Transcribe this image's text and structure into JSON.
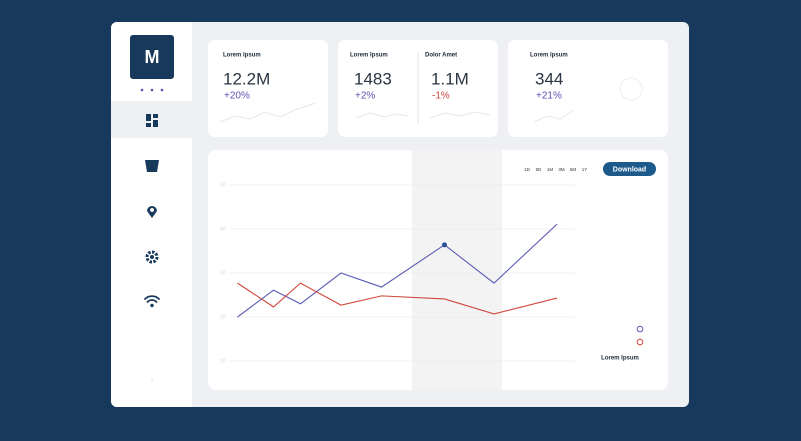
{
  "logo": "M",
  "cards": [
    {
      "items": [
        {
          "label": "Lorem Ipsum",
          "value": "12.2M",
          "change": "+20%"
        }
      ]
    },
    {
      "items": [
        {
          "label": "Lorem Ipsum",
          "value": "1483",
          "change": "+2%"
        },
        {
          "label": "Dolor Amet",
          "value": "1.1M",
          "change": "-1%"
        }
      ]
    },
    {
      "items": [
        {
          "label": "Lorem Ipsum",
          "value": "344",
          "change": "+21%"
        }
      ]
    }
  ],
  "download": "Download",
  "ranges": [
    "1D",
    "5D",
    "1M",
    "3M",
    "6M",
    "1Y"
  ],
  "legend": "Lorem Ipsum",
  "chart_data": {
    "type": "line",
    "xlim": [
      0,
      8
    ],
    "ylim": [
      10,
      50
    ],
    "yticks": [
      10,
      20,
      30,
      40,
      50
    ],
    "grid": true,
    "series": [
      {
        "color": "#5c5cb8",
        "x": [
          0.5,
          1.3,
          1.9,
          2.8,
          3.7,
          5.1,
          6.2,
          7.6
        ],
        "values": [
          20,
          26.1,
          23,
          30,
          26.8,
          36.4,
          27.7,
          41.1
        ]
      },
      {
        "color": "#d0463b",
        "x": [
          0.5,
          1.3,
          1.9,
          2.8,
          3.7,
          5.1,
          6.2,
          7.6
        ],
        "values": [
          27.7,
          22.3,
          27.7,
          22.7,
          24.8,
          24.1,
          20.7,
          24.3
        ]
      }
    ]
  }
}
